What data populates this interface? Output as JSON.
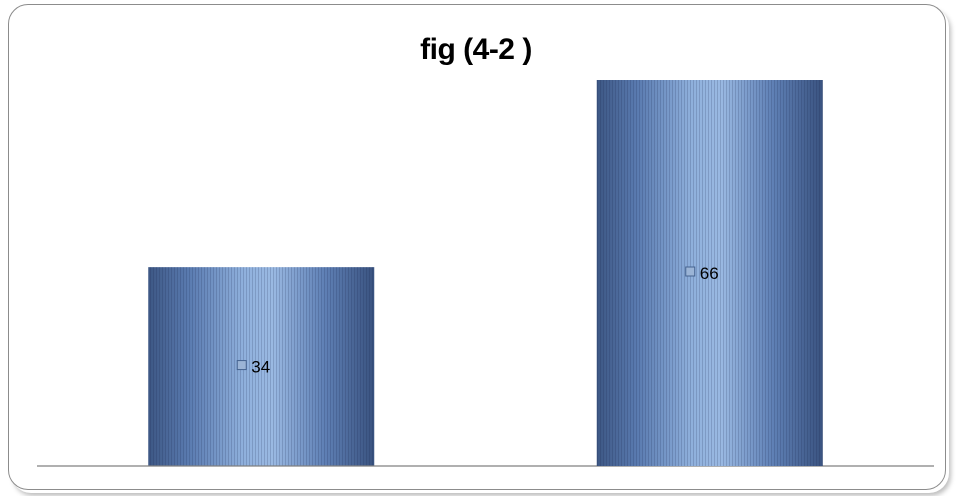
{
  "chart_data": {
    "type": "bar",
    "title": "fig (4-2 )",
    "categories": [
      "",
      ""
    ],
    "values": [
      34,
      66
    ],
    "data_labels": [
      "34",
      "66"
    ],
    "ylim": [
      0,
      70
    ],
    "grid": false,
    "legend": "none",
    "bar_color": "#4f6fa3",
    "bar_highlight": "#8fb0dc"
  }
}
